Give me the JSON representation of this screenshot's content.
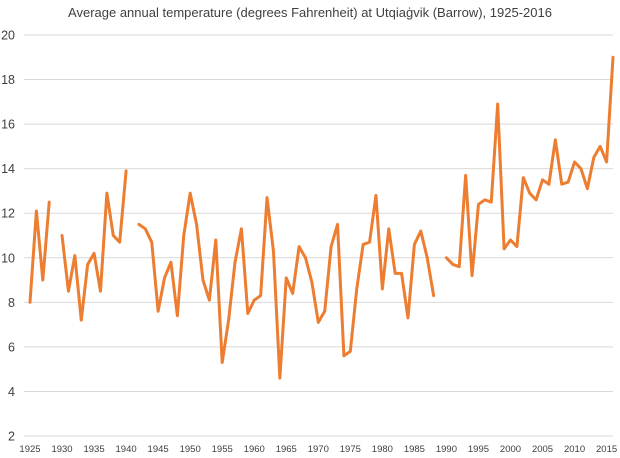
{
  "chart_data": {
    "type": "line",
    "title": "Average annual temperature (degrees Fahrenheit) at Utqiaġvik (Barrow), 1925-2016",
    "xlabel": "",
    "ylabel": "",
    "xlim": [
      1925,
      2016
    ],
    "ylim": [
      2,
      20
    ],
    "y_ticks": [
      "2",
      "4",
      "6",
      "8",
      "10",
      "12",
      "14",
      "16",
      "18",
      "20"
    ],
    "x_ticks": [
      "1925",
      "1930",
      "1935",
      "1940",
      "1945",
      "1950",
      "1955",
      "1960",
      "1965",
      "1970",
      "1975",
      "1980",
      "1985",
      "1990",
      "1995",
      "2000",
      "2005",
      "2010",
      "2015"
    ],
    "grid": true,
    "legend": "none",
    "line_color": "#ED7D31",
    "series": [
      {
        "name": "Average annual temperature",
        "x": [
          1925,
          1926,
          1927,
          1928,
          1929,
          1930,
          1931,
          1932,
          1933,
          1934,
          1935,
          1936,
          1937,
          1938,
          1939,
          1940,
          1941,
          1942,
          1943,
          1944,
          1945,
          1946,
          1947,
          1948,
          1949,
          1950,
          1951,
          1952,
          1953,
          1954,
          1955,
          1956,
          1957,
          1958,
          1959,
          1960,
          1961,
          1962,
          1963,
          1964,
          1965,
          1966,
          1967,
          1968,
          1969,
          1970,
          1971,
          1972,
          1973,
          1974,
          1975,
          1976,
          1977,
          1978,
          1979,
          1980,
          1981,
          1982,
          1983,
          1984,
          1985,
          1986,
          1987,
          1988,
          1989,
          1990,
          1991,
          1992,
          1993,
          1994,
          1995,
          1996,
          1997,
          1998,
          1999,
          2000,
          2001,
          2002,
          2003,
          2004,
          2005,
          2006,
          2007,
          2008,
          2009,
          2010,
          2011,
          2012,
          2013,
          2014,
          2015,
          2016
        ],
        "values": [
          8.0,
          12.1,
          9.0,
          12.5,
          null,
          11.0,
          8.5,
          10.1,
          7.2,
          9.7,
          10.2,
          8.5,
          12.9,
          11.0,
          10.7,
          13.9,
          null,
          11.5,
          11.3,
          10.7,
          7.6,
          9.1,
          9.8,
          7.4,
          11.0,
          12.9,
          11.5,
          9.0,
          8.1,
          10.8,
          5.3,
          7.2,
          9.8,
          11.3,
          7.5,
          8.1,
          8.3,
          12.7,
          10.3,
          4.6,
          9.1,
          8.4,
          10.5,
          10.0,
          8.9,
          7.1,
          7.6,
          10.5,
          11.5,
          5.6,
          5.8,
          8.6,
          10.6,
          10.7,
          12.8,
          8.6,
          11.3,
          9.3,
          9.3,
          7.3,
          10.6,
          11.2,
          10.0,
          8.3,
          null,
          10.0,
          9.7,
          9.6,
          13.7,
          9.2,
          12.4,
          12.6,
          12.5,
          16.9,
          10.4,
          10.8,
          10.5,
          13.6,
          12.9,
          12.6,
          13.5,
          13.3,
          15.3,
          13.3,
          13.4,
          14.3,
          14.0,
          13.1,
          14.5,
          15.0,
          14.3,
          19.0
        ]
      }
    ]
  }
}
